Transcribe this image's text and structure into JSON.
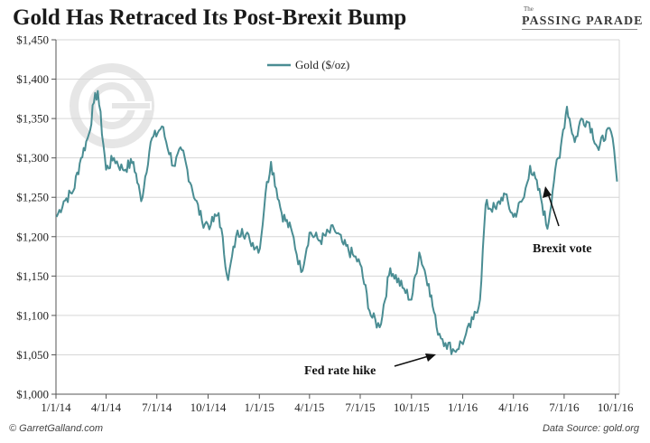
{
  "header": {
    "title": "Gold Has Retraced Its Post-Brexit Bump",
    "logo_small": "The",
    "logo_name": "PASSING PARADE"
  },
  "footer": {
    "copyright": "© GarretGalland.com",
    "source": "Data Source: gold.org"
  },
  "colors": {
    "series": "#4a8d93",
    "grid": "#d6d6d6",
    "axis": "#555555",
    "text": "#222222",
    "watermark": "#e6e6e6"
  },
  "watermark_icon": "gg-monogram-icon",
  "chart_data": {
    "type": "line",
    "title": "Gold Has Retraced Its Post-Brexit Bump",
    "xlabel": "",
    "ylabel": "",
    "ylim": [
      1000,
      1450
    ],
    "yticks": [
      1000,
      1050,
      1100,
      1150,
      1200,
      1250,
      1300,
      1350,
      1400,
      1450
    ],
    "ytick_labels": [
      "$1,000",
      "$1,050",
      "$1,100",
      "$1,150",
      "$1,200",
      "$1,250",
      "$1,300",
      "$1,350",
      "$1,400",
      "$1,450"
    ],
    "xticks": [
      "2014-01-01",
      "2014-04-01",
      "2014-07-01",
      "2014-10-01",
      "2015-01-01",
      "2015-04-01",
      "2015-07-01",
      "2015-10-01",
      "2016-01-01",
      "2016-04-01",
      "2016-07-01",
      "2016-10-01"
    ],
    "xtick_labels": [
      "1/1/14",
      "4/1/14",
      "7/1/14",
      "10/1/14",
      "1/1/15",
      "4/1/15",
      "7/1/15",
      "10/1/15",
      "1/1/16",
      "4/1/16",
      "7/1/16",
      "10/1/16"
    ],
    "xlim": [
      "2014-01-01",
      "2016-10-08"
    ],
    "grid": "horizontal",
    "legend_position": "top-left",
    "series": [
      {
        "name": "Gold ($/oz)",
        "x": [
          "2014-01-02",
          "2014-01-15",
          "2014-02-01",
          "2014-02-15",
          "2014-03-01",
          "2014-03-10",
          "2014-03-17",
          "2014-04-01",
          "2014-04-15",
          "2014-05-01",
          "2014-05-20",
          "2014-06-03",
          "2014-06-20",
          "2014-07-10",
          "2014-07-31",
          "2014-08-15",
          "2014-09-01",
          "2014-09-20",
          "2014-10-06",
          "2014-10-20",
          "2014-11-06",
          "2014-11-20",
          "2014-12-01",
          "2014-12-15",
          "2015-01-02",
          "2015-01-12",
          "2015-01-22",
          "2015-02-10",
          "2015-03-01",
          "2015-03-17",
          "2015-04-01",
          "2015-04-20",
          "2015-05-15",
          "2015-06-01",
          "2015-06-20",
          "2015-07-01",
          "2015-07-20",
          "2015-08-05",
          "2015-08-24",
          "2015-09-15",
          "2015-10-01",
          "2015-10-15",
          "2015-11-01",
          "2015-11-15",
          "2015-12-01",
          "2015-12-17",
          "2016-01-04",
          "2016-01-20",
          "2016-02-01",
          "2016-02-11",
          "2016-03-01",
          "2016-03-15",
          "2016-04-01",
          "2016-04-20",
          "2016-05-01",
          "2016-05-20",
          "2016-06-01",
          "2016-06-15",
          "2016-06-23",
          "2016-06-27",
          "2016-07-06",
          "2016-07-20",
          "2016-08-01",
          "2016-08-15",
          "2016-09-01",
          "2016-09-15",
          "2016-09-26",
          "2016-10-04"
        ],
        "y": [
          1225,
          1245,
          1258,
          1300,
          1330,
          1370,
          1385,
          1285,
          1300,
          1285,
          1295,
          1245,
          1320,
          1340,
          1290,
          1310,
          1265,
          1220,
          1215,
          1230,
          1145,
          1200,
          1210,
          1195,
          1185,
          1255,
          1295,
          1230,
          1205,
          1155,
          1205,
          1195,
          1210,
          1190,
          1175,
          1165,
          1100,
          1085,
          1160,
          1135,
          1120,
          1180,
          1140,
          1085,
          1065,
          1055,
          1070,
          1095,
          1120,
          1240,
          1235,
          1255,
          1225,
          1250,
          1290,
          1250,
          1210,
          1285,
          1300,
          1325,
          1365,
          1320,
          1350,
          1345,
          1310,
          1335,
          1325,
          1270
        ]
      }
    ],
    "annotations": [
      {
        "text": "Fed rate hike",
        "x": "2015-12-17",
        "y": 1055
      },
      {
        "text": "Brexit vote",
        "x": "2016-06-24",
        "y": 1270
      }
    ]
  }
}
